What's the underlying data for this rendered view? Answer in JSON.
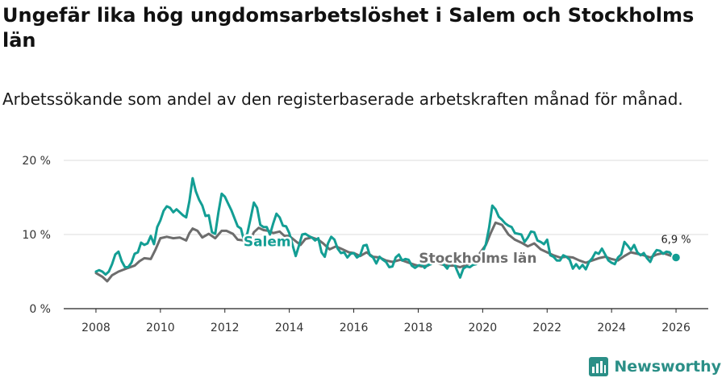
{
  "header": {
    "title": "Ungefär lika hög ungdomsarbetslöshet i Salem och Stockholms län",
    "subtitle": "Arbetssökande som andel av den registerbaserade arbetskraften månad för månad."
  },
  "brand": {
    "name": "Newsworthy"
  },
  "chart_data": {
    "type": "line",
    "title": "Ungefär lika hög ungdomsarbetslöshet i Salem och Stockholms län",
    "subtitle": "Arbetssökande som andel av den registerbaserade arbetskraften månad för månad.",
    "xlabel": "",
    "ylabel": "",
    "xlim": [
      2007.0,
      2027.0
    ],
    "ylim": [
      0,
      20
    ],
    "x_ticks": [
      2008,
      2010,
      2012,
      2014,
      2016,
      2018,
      2020,
      2022,
      2024,
      2026
    ],
    "x_tick_labels": [
      "2008",
      "2010",
      "2012",
      "2014",
      "2016",
      "2018",
      "2020",
      "2022",
      "2024",
      "2026"
    ],
    "y_ticks": [
      0,
      10,
      20
    ],
    "y_tick_labels": [
      "0 %",
      "10 %",
      "20 %"
    ],
    "grid": "horizontal",
    "end_label": "6,9 %",
    "series": [
      {
        "name": "Salem",
        "label": "Salem",
        "color": "#139e94",
        "points": [
          [
            2008.0,
            5.0
          ],
          [
            2008.1,
            5.2
          ],
          [
            2008.2,
            5.0
          ],
          [
            2008.3,
            4.6
          ],
          [
            2008.4,
            5.0
          ],
          [
            2008.5,
            6.0
          ],
          [
            2008.6,
            7.3
          ],
          [
            2008.7,
            7.7
          ],
          [
            2008.8,
            6.4
          ],
          [
            2008.9,
            5.6
          ],
          [
            2009.0,
            5.6
          ],
          [
            2009.1,
            6.2
          ],
          [
            2009.2,
            7.4
          ],
          [
            2009.3,
            7.6
          ],
          [
            2009.4,
            8.9
          ],
          [
            2009.5,
            8.6
          ],
          [
            2009.6,
            8.8
          ],
          [
            2009.7,
            9.8
          ],
          [
            2009.8,
            8.7
          ],
          [
            2009.9,
            11.0
          ],
          [
            2010.0,
            11.9
          ],
          [
            2010.1,
            13.2
          ],
          [
            2010.2,
            13.8
          ],
          [
            2010.3,
            13.6
          ],
          [
            2010.4,
            13.0
          ],
          [
            2010.5,
            13.4
          ],
          [
            2010.6,
            13.0
          ],
          [
            2010.7,
            12.6
          ],
          [
            2010.8,
            12.3
          ],
          [
            2010.9,
            14.5
          ],
          [
            2011.0,
            17.6
          ],
          [
            2011.1,
            15.8
          ],
          [
            2011.2,
            14.7
          ],
          [
            2011.3,
            13.9
          ],
          [
            2011.4,
            12.5
          ],
          [
            2011.5,
            12.6
          ],
          [
            2011.6,
            10.3
          ],
          [
            2011.7,
            10.1
          ],
          [
            2011.8,
            13.0
          ],
          [
            2011.9,
            15.5
          ],
          [
            2012.0,
            15.1
          ],
          [
            2012.1,
            14.2
          ],
          [
            2012.2,
            13.3
          ],
          [
            2012.3,
            12.2
          ],
          [
            2012.4,
            11.1
          ],
          [
            2012.5,
            10.8
          ],
          [
            2012.6,
            9.1
          ],
          [
            2012.7,
            10.2
          ],
          [
            2012.8,
            12.2
          ],
          [
            2012.9,
            14.3
          ],
          [
            2013.0,
            13.6
          ],
          [
            2013.1,
            11.3
          ],
          [
            2013.2,
            11.0
          ],
          [
            2013.3,
            11.0
          ],
          [
            2013.4,
            10.0
          ],
          [
            2013.5,
            11.5
          ],
          [
            2013.6,
            12.8
          ],
          [
            2013.7,
            12.3
          ],
          [
            2013.8,
            11.2
          ],
          [
            2013.9,
            11.1
          ],
          [
            2014.0,
            10.2
          ],
          [
            2014.1,
            8.6
          ],
          [
            2014.2,
            7.1
          ],
          [
            2014.3,
            8.5
          ],
          [
            2014.4,
            10.0
          ],
          [
            2014.5,
            10.1
          ],
          [
            2014.6,
            9.8
          ],
          [
            2014.7,
            9.6
          ],
          [
            2014.8,
            9.2
          ],
          [
            2014.9,
            9.5
          ],
          [
            2015.0,
            7.6
          ],
          [
            2015.1,
            7.0
          ],
          [
            2015.2,
            8.8
          ],
          [
            2015.3,
            9.7
          ],
          [
            2015.4,
            9.3
          ],
          [
            2015.5,
            8.1
          ],
          [
            2015.6,
            7.5
          ],
          [
            2015.7,
            7.6
          ],
          [
            2015.8,
            6.9
          ],
          [
            2015.9,
            7.4
          ],
          [
            2016.0,
            7.5
          ],
          [
            2016.1,
            6.9
          ],
          [
            2016.2,
            7.2
          ],
          [
            2016.3,
            8.5
          ],
          [
            2016.4,
            8.6
          ],
          [
            2016.5,
            7.2
          ],
          [
            2016.6,
            6.9
          ],
          [
            2016.7,
            6.1
          ],
          [
            2016.8,
            7.0
          ],
          [
            2016.9,
            6.6
          ],
          [
            2017.0,
            6.3
          ],
          [
            2017.1,
            5.6
          ],
          [
            2017.2,
            5.7
          ],
          [
            2017.3,
            6.9
          ],
          [
            2017.4,
            7.3
          ],
          [
            2017.5,
            6.5
          ],
          [
            2017.6,
            6.7
          ],
          [
            2017.7,
            6.6
          ],
          [
            2017.8,
            5.8
          ],
          [
            2017.9,
            5.5
          ],
          [
            2018.0,
            5.8
          ],
          [
            2018.1,
            6.0
          ],
          [
            2018.2,
            5.5
          ],
          [
            2018.3,
            5.9
          ],
          [
            2018.4,
            6.0
          ],
          [
            2018.5,
            6.6
          ],
          [
            2018.6,
            6.8
          ],
          [
            2018.7,
            6.3
          ],
          [
            2018.8,
            5.9
          ],
          [
            2018.9,
            5.4
          ],
          [
            2019.0,
            6.2
          ],
          [
            2019.1,
            6.3
          ],
          [
            2019.2,
            5.2
          ],
          [
            2019.3,
            4.2
          ],
          [
            2019.4,
            5.4
          ],
          [
            2019.5,
            5.7
          ],
          [
            2019.6,
            5.6
          ],
          [
            2019.7,
            5.9
          ],
          [
            2019.8,
            6.0
          ],
          [
            2019.9,
            7.0
          ],
          [
            2020.0,
            7.6
          ],
          [
            2020.1,
            8.7
          ],
          [
            2020.2,
            10.9
          ],
          [
            2020.3,
            13.9
          ],
          [
            2020.4,
            13.4
          ],
          [
            2020.5,
            12.4
          ],
          [
            2020.6,
            12.0
          ],
          [
            2020.7,
            11.5
          ],
          [
            2020.8,
            11.2
          ],
          [
            2020.9,
            11.0
          ],
          [
            2021.0,
            10.2
          ],
          [
            2021.1,
            10.1
          ],
          [
            2021.2,
            10.0
          ],
          [
            2021.3,
            9.0
          ],
          [
            2021.4,
            9.6
          ],
          [
            2021.5,
            10.4
          ],
          [
            2021.6,
            10.3
          ],
          [
            2021.7,
            9.2
          ],
          [
            2021.8,
            9.0
          ],
          [
            2021.9,
            8.7
          ],
          [
            2022.0,
            9.3
          ],
          [
            2022.1,
            7.2
          ],
          [
            2022.2,
            7.0
          ],
          [
            2022.3,
            6.5
          ],
          [
            2022.4,
            6.5
          ],
          [
            2022.5,
            7.2
          ],
          [
            2022.6,
            7.0
          ],
          [
            2022.7,
            6.6
          ],
          [
            2022.8,
            5.4
          ],
          [
            2022.9,
            6.0
          ],
          [
            2023.0,
            5.4
          ],
          [
            2023.1,
            5.9
          ],
          [
            2023.2,
            5.3
          ],
          [
            2023.3,
            6.3
          ],
          [
            2023.4,
            6.8
          ],
          [
            2023.5,
            7.6
          ],
          [
            2023.6,
            7.4
          ],
          [
            2023.7,
            8.1
          ],
          [
            2023.8,
            7.3
          ],
          [
            2023.9,
            6.5
          ],
          [
            2024.0,
            6.2
          ],
          [
            2024.1,
            6.0
          ],
          [
            2024.2,
            6.9
          ],
          [
            2024.3,
            7.3
          ],
          [
            2024.4,
            9.0
          ],
          [
            2024.5,
            8.5
          ],
          [
            2024.6,
            7.9
          ],
          [
            2024.7,
            8.6
          ],
          [
            2024.8,
            7.6
          ],
          [
            2024.9,
            7.2
          ],
          [
            2025.0,
            7.5
          ],
          [
            2025.1,
            6.8
          ],
          [
            2025.2,
            6.3
          ],
          [
            2025.3,
            7.3
          ],
          [
            2025.4,
            7.9
          ],
          [
            2025.5,
            7.8
          ],
          [
            2025.6,
            7.4
          ],
          [
            2025.7,
            7.7
          ],
          [
            2025.8,
            7.6
          ],
          [
            2025.9,
            7.0
          ],
          [
            2026.0,
            6.9
          ]
        ]
      },
      {
        "name": "Stockholms län",
        "label": "Stockholms län",
        "color": "#6d6d6d",
        "points": [
          [
            2008.0,
            4.8
          ],
          [
            2008.2,
            4.3
          ],
          [
            2008.35,
            3.7
          ],
          [
            2008.5,
            4.5
          ],
          [
            2008.7,
            5.0
          ],
          [
            2009.0,
            5.5
          ],
          [
            2009.2,
            5.8
          ],
          [
            2009.35,
            6.4
          ],
          [
            2009.5,
            6.8
          ],
          [
            2009.7,
            6.7
          ],
          [
            2009.85,
            8.0
          ],
          [
            2010.0,
            9.5
          ],
          [
            2010.2,
            9.7
          ],
          [
            2010.4,
            9.5
          ],
          [
            2010.6,
            9.6
          ],
          [
            2010.8,
            9.2
          ],
          [
            2010.9,
            10.2
          ],
          [
            2011.0,
            10.8
          ],
          [
            2011.15,
            10.5
          ],
          [
            2011.3,
            9.6
          ],
          [
            2011.5,
            10.1
          ],
          [
            2011.7,
            9.5
          ],
          [
            2011.9,
            10.5
          ],
          [
            2012.05,
            10.5
          ],
          [
            2012.25,
            10.1
          ],
          [
            2012.4,
            9.3
          ],
          [
            2012.6,
            9.2
          ],
          [
            2012.75,
            8.8
          ],
          [
            2012.9,
            10.3
          ],
          [
            2013.05,
            10.9
          ],
          [
            2013.2,
            10.6
          ],
          [
            2013.35,
            10.5
          ],
          [
            2013.5,
            10.2
          ],
          [
            2013.7,
            10.4
          ],
          [
            2013.85,
            9.8
          ],
          [
            2014.0,
            9.8
          ],
          [
            2014.2,
            9.1
          ],
          [
            2014.35,
            8.6
          ],
          [
            2014.5,
            9.4
          ],
          [
            2014.7,
            9.6
          ],
          [
            2014.9,
            9.3
          ],
          [
            2015.05,
            8.8
          ],
          [
            2015.25,
            8.0
          ],
          [
            2015.45,
            8.4
          ],
          [
            2015.65,
            8.0
          ],
          [
            2015.85,
            7.6
          ],
          [
            2016.0,
            7.5
          ],
          [
            2016.2,
            7.1
          ],
          [
            2016.4,
            7.6
          ],
          [
            2016.6,
            7.0
          ],
          [
            2016.8,
            6.9
          ],
          [
            2017.0,
            6.5
          ],
          [
            2017.2,
            6.3
          ],
          [
            2017.45,
            6.6
          ],
          [
            2017.7,
            6.2
          ],
          [
            2017.9,
            5.9
          ],
          [
            2018.1,
            5.7
          ],
          [
            2018.3,
            5.8
          ],
          [
            2018.5,
            6.3
          ],
          [
            2018.7,
            6.0
          ],
          [
            2018.9,
            5.8
          ],
          [
            2019.1,
            5.8
          ],
          [
            2019.3,
            5.6
          ],
          [
            2019.5,
            5.9
          ],
          [
            2019.7,
            6.3
          ],
          [
            2019.9,
            7.4
          ],
          [
            2020.1,
            8.6
          ],
          [
            2020.25,
            10.2
          ],
          [
            2020.4,
            11.6
          ],
          [
            2020.6,
            11.3
          ],
          [
            2020.8,
            10.0
          ],
          [
            2021.0,
            9.3
          ],
          [
            2021.2,
            8.9
          ],
          [
            2021.4,
            8.4
          ],
          [
            2021.6,
            8.8
          ],
          [
            2021.8,
            8.0
          ],
          [
            2022.0,
            7.6
          ],
          [
            2022.2,
            7.2
          ],
          [
            2022.4,
            6.9
          ],
          [
            2022.6,
            7.0
          ],
          [
            2022.8,
            6.9
          ],
          [
            2023.0,
            6.5
          ],
          [
            2023.2,
            6.2
          ],
          [
            2023.4,
            6.5
          ],
          [
            2023.6,
            6.8
          ],
          [
            2023.8,
            7.0
          ],
          [
            2024.0,
            6.7
          ],
          [
            2024.2,
            6.5
          ],
          [
            2024.4,
            7.1
          ],
          [
            2024.6,
            7.6
          ],
          [
            2024.8,
            7.4
          ],
          [
            2025.0,
            7.2
          ],
          [
            2025.2,
            6.9
          ],
          [
            2025.4,
            7.3
          ],
          [
            2025.6,
            7.5
          ],
          [
            2025.8,
            7.2
          ],
          [
            2026.0,
            6.9
          ]
        ]
      }
    ]
  }
}
